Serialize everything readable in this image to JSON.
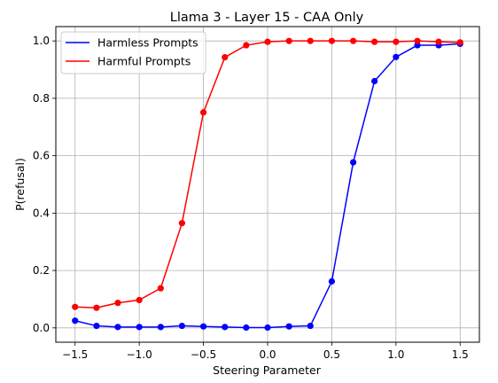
{
  "chart_data": {
    "type": "line",
    "title": "Llama 3 - Layer 15 - CAA Only",
    "xlabel": "Steering Parameter",
    "ylabel": "P(refusal)",
    "xlim": [
      -1.65,
      1.65
    ],
    "ylim": [
      -0.05,
      1.05
    ],
    "x_ticks": [
      -1.5,
      -1.0,
      -0.5,
      0.0,
      0.5,
      1.0,
      1.5
    ],
    "x_tick_labels": [
      "−1.5",
      "−1.0",
      "−0.5",
      "0.0",
      "0.5",
      "1.0",
      "1.5"
    ],
    "y_ticks": [
      0.0,
      0.2,
      0.4,
      0.6,
      0.8,
      1.0
    ],
    "y_tick_labels": [
      "0.0",
      "0.2",
      "0.4",
      "0.6",
      "0.8",
      "1.0"
    ],
    "grid": true,
    "legend_position": "top-left",
    "x": [
      -1.5,
      -1.333,
      -1.167,
      -1.0,
      -0.833,
      -0.667,
      -0.5,
      -0.333,
      -0.167,
      0.0,
      0.167,
      0.333,
      0.5,
      0.667,
      0.833,
      1.0,
      1.167,
      1.333,
      1.5
    ],
    "series": [
      {
        "name": "Harmless Prompts",
        "color": "#0000ff",
        "values": [
          0.025,
          0.007,
          0.003,
          0.003,
          0.003,
          0.007,
          0.005,
          0.003,
          0.001,
          0.001,
          0.005,
          0.007,
          0.162,
          0.577,
          0.86,
          0.944,
          0.985,
          0.985,
          0.99
        ]
      },
      {
        "name": "Harmful Prompts",
        "color": "#ff0000",
        "values": [
          0.073,
          0.07,
          0.087,
          0.097,
          0.138,
          0.365,
          0.751,
          0.943,
          0.985,
          0.997,
          1.0,
          1.0,
          1.0,
          1.0,
          0.997,
          0.997,
          1.0,
          0.997,
          0.995
        ]
      }
    ]
  }
}
